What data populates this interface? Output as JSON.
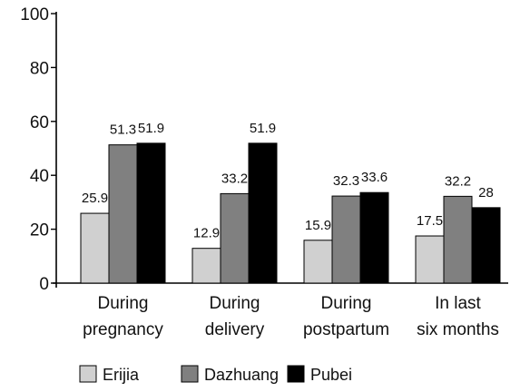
{
  "chart_data": {
    "type": "bar",
    "categories": [
      [
        "During",
        "pregnancy"
      ],
      [
        "During",
        "delivery"
      ],
      [
        "During",
        "postpartum"
      ],
      [
        "In last",
        "six months"
      ]
    ],
    "series": [
      {
        "name": "Erijia",
        "color": "#d0d0d0",
        "values": [
          25.9,
          12.9,
          15.9,
          17.5
        ],
        "labels": [
          "25.9",
          "12.9",
          "15.9",
          "17.5"
        ]
      },
      {
        "name": "Dazhuang",
        "color": "#808080",
        "values": [
          51.3,
          33.2,
          32.3,
          32.2
        ],
        "labels": [
          "51.3",
          "33.2",
          "32.3",
          "32.2"
        ]
      },
      {
        "name": "Pubei",
        "color": "#000000",
        "values": [
          51.9,
          51.9,
          33.6,
          28
        ],
        "labels": [
          "51.9",
          "51.9",
          "33.6",
          "28"
        ]
      }
    ],
    "ylim": [
      0,
      100
    ],
    "yticks": [
      "0",
      "20",
      "40",
      "60",
      "80",
      "100"
    ],
    "grid": false,
    "legend_position": "bottom"
  }
}
